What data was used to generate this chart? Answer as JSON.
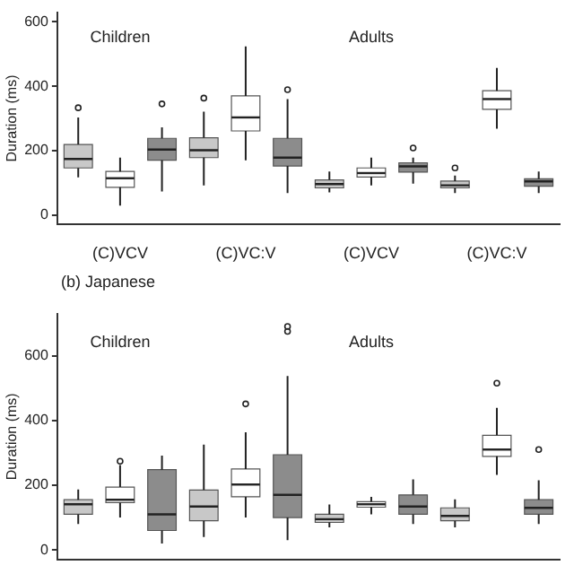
{
  "chart_data": [
    {
      "type": "box",
      "categories": [
        "(C)VCV",
        "(C)VC:V",
        "(C)VCV",
        "(C)VC:V"
      ],
      "ylabel": "Duration (ms)",
      "ylim": [
        -30,
        630
      ],
      "yticks": [
        0,
        200,
        400,
        600
      ],
      "grid": false,
      "legend": false,
      "annotations": [
        "Children",
        "Adults"
      ],
      "series": [
        {
          "color": "#c8c8c8",
          "boxes": [
            {
              "low": 117,
              "q1": 146,
              "median": 174,
              "q3": 219,
              "high": 303,
              "outliers": [
                333
              ]
            },
            {
              "low": 92,
              "q1": 178,
              "median": 201,
              "q3": 240,
              "high": 321,
              "outliers": [
                363
              ]
            },
            {
              "low": 70,
              "q1": 84,
              "median": 96,
              "q3": 109,
              "high": 135
            },
            {
              "low": 68,
              "q1": 84,
              "median": 92,
              "q3": 105,
              "high": 122,
              "outliers": [
                146
              ]
            }
          ]
        },
        {
          "color": "#ffffff",
          "boxes": [
            {
              "low": 29,
              "q1": 86,
              "median": 114,
              "q3": 135,
              "high": 178
            },
            {
              "low": 170,
              "q1": 261,
              "median": 303,
              "q3": 370,
              "high": 524
            },
            {
              "low": 92,
              "q1": 118,
              "median": 130,
              "q3": 146,
              "high": 178
            },
            {
              "low": 268,
              "q1": 328,
              "median": 360,
              "q3": 386,
              "high": 457
            }
          ]
        },
        {
          "color": "#8c8c8c",
          "boxes": [
            {
              "low": 73,
              "q1": 170,
              "median": 203,
              "q3": 238,
              "high": 272,
              "outliers": [
                345
              ]
            },
            {
              "low": 68,
              "q1": 152,
              "median": 178,
              "q3": 238,
              "high": 360,
              "outliers": [
                389
              ]
            },
            {
              "low": 97,
              "q1": 133,
              "median": 151,
              "q3": 162,
              "high": 178,
              "outliers": [
                208
              ]
            },
            {
              "low": 68,
              "q1": 89,
              "median": 104,
              "q3": 112,
              "high": 135
            }
          ]
        }
      ]
    },
    {
      "type": "box",
      "title": "(b) Japanese",
      "categories": [
        null,
        null,
        null,
        null
      ],
      "ylabel": "Duration (ms)",
      "ylim": [
        -30,
        730
      ],
      "yticks": [
        0,
        200,
        400,
        600
      ],
      "grid": false,
      "legend": false,
      "tick_labels": "y",
      "annotations": [
        "Children",
        "Adults"
      ],
      "series": [
        {
          "color": "#c8c8c8",
          "boxes": [
            {
              "low": 80,
              "q1": 110,
              "median": 141,
              "q3": 155,
              "high": 187
            },
            {
              "low": 40,
              "q1": 90,
              "median": 134,
              "q3": 185,
              "high": 325
            },
            {
              "low": 70,
              "q1": 85,
              "median": 95,
              "q3": 110,
              "high": 140
            },
            {
              "low": 70,
              "q1": 90,
              "median": 105,
              "q3": 130,
              "high": 156
            }
          ]
        },
        {
          "color": "#ffffff",
          "boxes": [
            {
              "low": 100,
              "q1": 146,
              "median": 155,
              "q3": 194,
              "high": 262,
              "outliers": [
                274
              ]
            },
            {
              "low": 100,
              "q1": 164,
              "median": 202,
              "q3": 250,
              "high": 363,
              "outliers": [
                451
              ]
            },
            {
              "low": 110,
              "q1": 132,
              "median": 141,
              "q3": 149,
              "high": 164
            },
            {
              "low": 232,
              "q1": 289,
              "median": 310,
              "q3": 354,
              "high": 439,
              "outliers": [
                515
              ]
            }
          ]
        },
        {
          "color": "#8c8c8c",
          "boxes": [
            {
              "low": 20,
              "q1": 60,
              "median": 110,
              "q3": 248,
              "high": 291
            },
            {
              "low": 30,
              "q1": 100,
              "median": 170,
              "q3": 294,
              "high": 537,
              "outliers": [
                675,
                690
              ]
            },
            {
              "low": 80,
              "q1": 110,
              "median": 134,
              "q3": 170,
              "high": 218
            },
            {
              "low": 80,
              "q1": 110,
              "median": 130,
              "q3": 155,
              "high": 215,
              "outliers": [
                310
              ]
            }
          ]
        }
      ]
    }
  ]
}
